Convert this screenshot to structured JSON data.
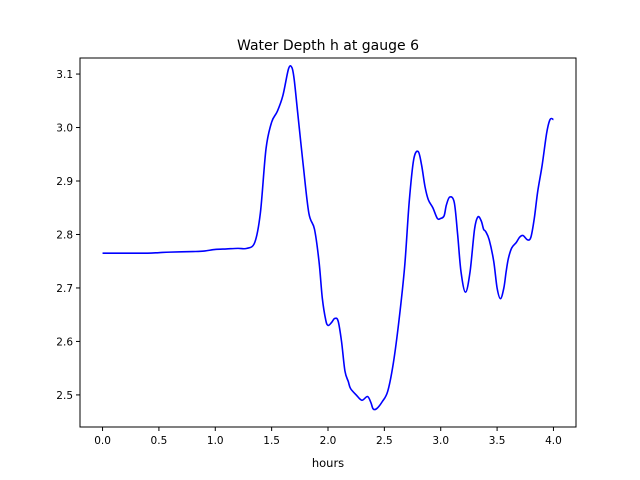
{
  "chart_data": {
    "type": "line",
    "title": "Water Depth h at gauge 6",
    "xlabel": "hours",
    "ylabel": "",
    "xlim": [
      -0.2,
      4.2
    ],
    "ylim": [
      2.44,
      3.13
    ],
    "xticks": [
      0.0,
      0.5,
      1.0,
      1.5,
      2.0,
      2.5,
      3.0,
      3.5,
      4.0
    ],
    "xtick_labels": [
      "0.0",
      "0.5",
      "1.0",
      "1.5",
      "2.0",
      "2.5",
      "3.0",
      "3.5",
      "4.0"
    ],
    "yticks": [
      2.5,
      2.6,
      2.7,
      2.8,
      2.9,
      3.0,
      3.1
    ],
    "ytick_labels": [
      "2.5",
      "2.6",
      "2.7",
      "2.8",
      "2.9",
      "3.0",
      "3.1"
    ],
    "grid": false,
    "series": [
      {
        "color": "#0000ff",
        "x": [
          0.0,
          0.2,
          0.4,
          0.5,
          0.6,
          0.8,
          0.9,
          1.0,
          1.1,
          1.2,
          1.28,
          1.35,
          1.4,
          1.45,
          1.5,
          1.55,
          1.6,
          1.65,
          1.68,
          1.7,
          1.73,
          1.78,
          1.83,
          1.88,
          1.92,
          1.95,
          1.98,
          2.0,
          2.03,
          2.06,
          2.09,
          2.12,
          2.15,
          2.18,
          2.2,
          2.25,
          2.3,
          2.35,
          2.38,
          2.4,
          2.43,
          2.48,
          2.53,
          2.58,
          2.63,
          2.68,
          2.72,
          2.76,
          2.8,
          2.83,
          2.86,
          2.89,
          2.93,
          2.97,
          3.0,
          3.03,
          3.05,
          3.08,
          3.12,
          3.15,
          3.18,
          3.22,
          3.26,
          3.3,
          3.33,
          3.36,
          3.38,
          3.4,
          3.43,
          3.47,
          3.5,
          3.53,
          3.56,
          3.58,
          3.6,
          3.63,
          3.67,
          3.7,
          3.73,
          3.77,
          3.8,
          3.83,
          3.86,
          3.9,
          3.94,
          3.97,
          4.0
        ],
        "y": [
          2.765,
          2.765,
          2.765,
          2.766,
          2.767,
          2.768,
          2.769,
          2.772,
          2.773,
          2.774,
          2.774,
          2.785,
          2.84,
          2.96,
          3.01,
          3.03,
          3.06,
          3.11,
          3.112,
          3.09,
          3.03,
          2.93,
          2.84,
          2.81,
          2.75,
          2.68,
          2.64,
          2.63,
          2.635,
          2.643,
          2.638,
          2.6,
          2.545,
          2.525,
          2.512,
          2.5,
          2.49,
          2.497,
          2.486,
          2.474,
          2.474,
          2.487,
          2.507,
          2.56,
          2.64,
          2.74,
          2.86,
          2.94,
          2.955,
          2.93,
          2.89,
          2.865,
          2.85,
          2.83,
          2.83,
          2.835,
          2.855,
          2.87,
          2.86,
          2.8,
          2.73,
          2.692,
          2.73,
          2.81,
          2.833,
          2.825,
          2.81,
          2.805,
          2.79,
          2.75,
          2.7,
          2.68,
          2.7,
          2.73,
          2.755,
          2.775,
          2.785,
          2.795,
          2.798,
          2.79,
          2.795,
          2.83,
          2.88,
          2.93,
          2.99,
          3.015,
          3.015
        ]
      }
    ]
  }
}
